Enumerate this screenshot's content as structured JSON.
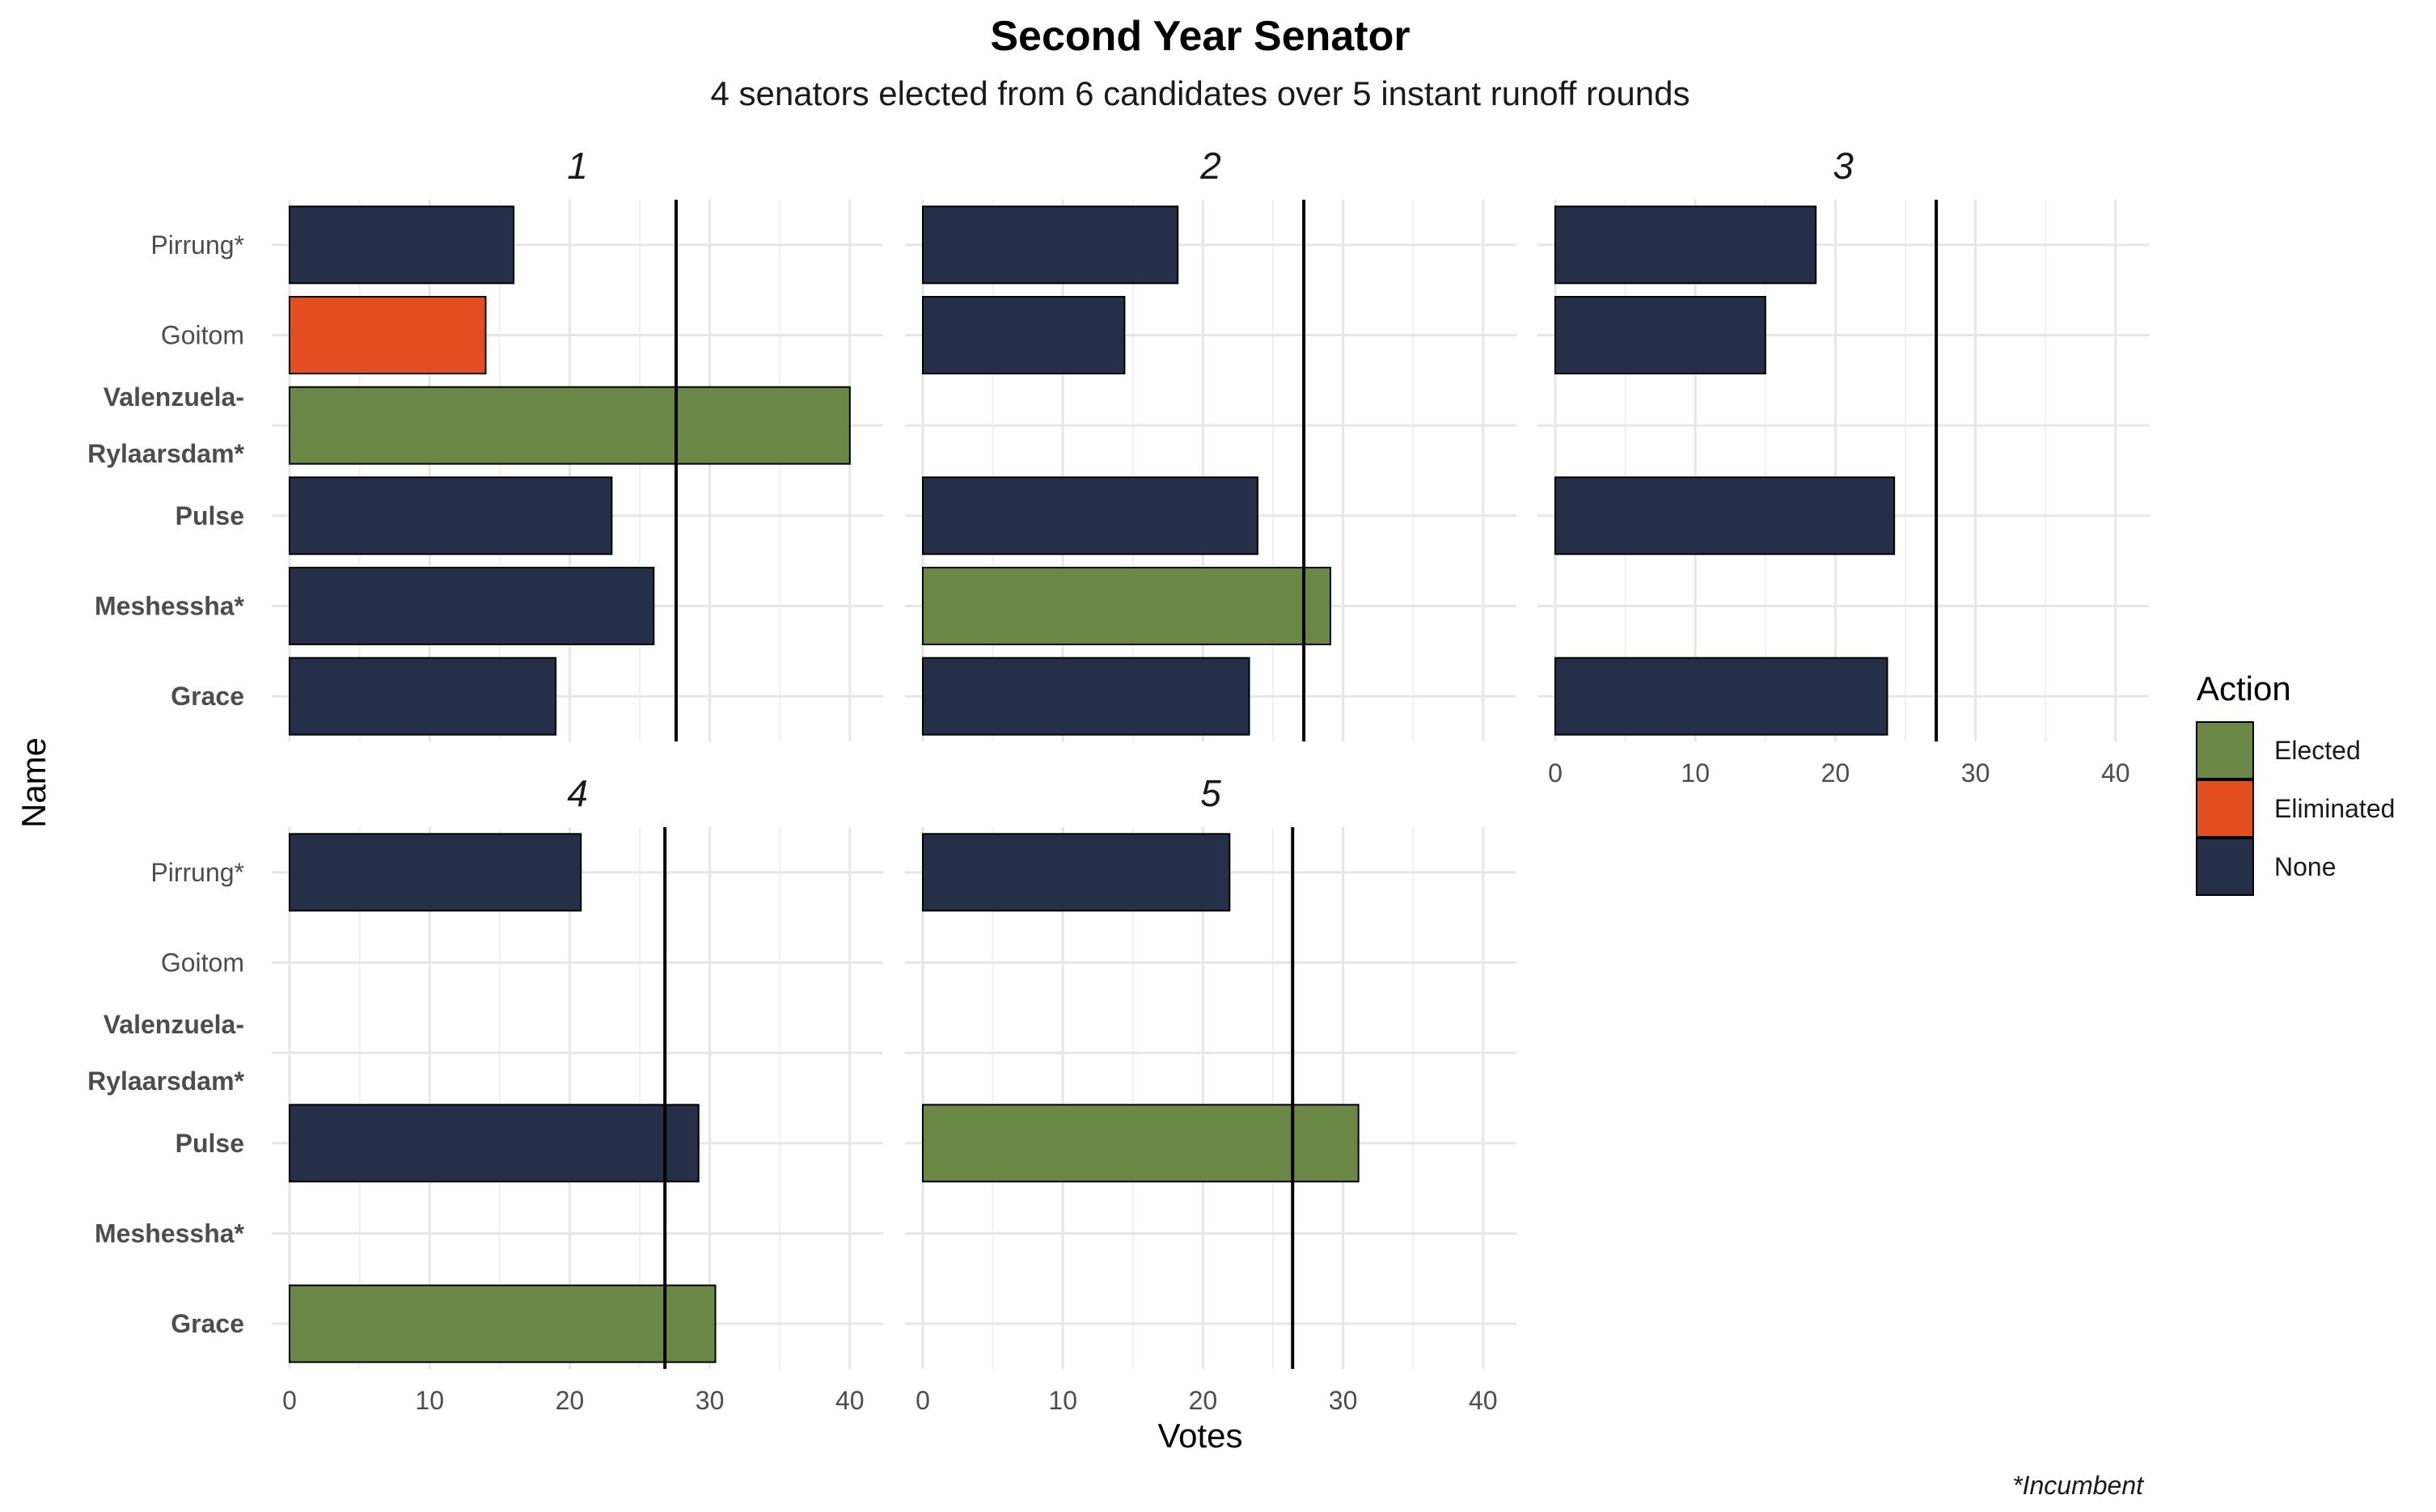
{
  "chart_data": {
    "type": "bar",
    "orientation": "horizontal",
    "title": "Second Year Senator",
    "subtitle": "4 senators elected from 6 candidates over 5 instant runoff rounds",
    "xlabel": "Votes",
    "ylabel": "Name",
    "caption": "*Incumbent",
    "xlim": [
      0,
      42
    ],
    "x_ticks": [
      "0",
      "10",
      "20",
      "30",
      "40"
    ],
    "grid": true,
    "legend_position": "right",
    "legend_title": "Action",
    "legend": [
      {
        "label": "Elected",
        "color": "#6b8745"
      },
      {
        "label": "Eliminated",
        "color": "#e24e20"
      },
      {
        "label": "None",
        "color": "#262f48"
      }
    ],
    "candidates": [
      {
        "label": "Pirrung*",
        "lines": [
          "Pirrung*"
        ],
        "bold": false
      },
      {
        "label": "Goitom",
        "lines": [
          "Goitom"
        ],
        "bold": false
      },
      {
        "label": "Valenzuela-Rylaarsdam*",
        "lines": [
          "Valenzuela-",
          "Rylaarsdam*"
        ],
        "bold": true
      },
      {
        "label": "Pulse",
        "lines": [
          "Pulse"
        ],
        "bold": true
      },
      {
        "label": "Meshessha*",
        "lines": [
          "Meshessha*"
        ],
        "bold": true
      },
      {
        "label": "Grace",
        "lines": [
          "Grace"
        ],
        "bold": true
      }
    ],
    "rounds": [
      {
        "round": "1",
        "threshold": 27.6,
        "bars": [
          {
            "candidate": "Pirrung*",
            "votes": 16,
            "action": "None"
          },
          {
            "candidate": "Goitom",
            "votes": 14,
            "action": "Eliminated"
          },
          {
            "candidate": "Valenzuela-Rylaarsdam*",
            "votes": 40,
            "action": "Elected"
          },
          {
            "candidate": "Pulse",
            "votes": 23,
            "action": "None"
          },
          {
            "candidate": "Meshessha*",
            "votes": 26,
            "action": "None"
          },
          {
            "candidate": "Grace",
            "votes": 19,
            "action": "None"
          }
        ]
      },
      {
        "round": "2",
        "threshold": 27.2,
        "bars": [
          {
            "candidate": "Pirrung*",
            "votes": 18.2,
            "action": "None"
          },
          {
            "candidate": "Goitom",
            "votes": 14.4,
            "action": "None"
          },
          {
            "candidate": "Valenzuela-Rylaarsdam*",
            "votes": 0,
            "action": "None"
          },
          {
            "candidate": "Pulse",
            "votes": 23.9,
            "action": "None"
          },
          {
            "candidate": "Meshessha*",
            "votes": 29.1,
            "action": "Elected"
          },
          {
            "candidate": "Grace",
            "votes": 23.3,
            "action": "None"
          }
        ]
      },
      {
        "round": "3",
        "threshold": 27.2,
        "bars": [
          {
            "candidate": "Pirrung*",
            "votes": 18.6,
            "action": "None"
          },
          {
            "candidate": "Goitom",
            "votes": 15,
            "action": "None"
          },
          {
            "candidate": "Valenzuela-Rylaarsdam*",
            "votes": 0,
            "action": "None"
          },
          {
            "candidate": "Pulse",
            "votes": 24.2,
            "action": "None"
          },
          {
            "candidate": "Meshessha*",
            "votes": 0,
            "action": "None"
          },
          {
            "candidate": "Grace",
            "votes": 23.7,
            "action": "None"
          }
        ]
      },
      {
        "round": "4",
        "threshold": 26.8,
        "bars": [
          {
            "candidate": "Pirrung*",
            "votes": 20.8,
            "action": "None"
          },
          {
            "candidate": "Goitom",
            "votes": 0,
            "action": "None"
          },
          {
            "candidate": "Valenzuela-Rylaarsdam*",
            "votes": 0,
            "action": "None"
          },
          {
            "candidate": "Pulse",
            "votes": 29.2,
            "action": "None"
          },
          {
            "candidate": "Meshessha*",
            "votes": 0,
            "action": "None"
          },
          {
            "candidate": "Grace",
            "votes": 30.4,
            "action": "Elected"
          }
        ]
      },
      {
        "round": "5",
        "threshold": 26.4,
        "bars": [
          {
            "candidate": "Pirrung*",
            "votes": 21.9,
            "action": "None"
          },
          {
            "candidate": "Goitom",
            "votes": 0,
            "action": "None"
          },
          {
            "candidate": "Valenzuela-Rylaarsdam*",
            "votes": 0,
            "action": "None"
          },
          {
            "candidate": "Pulse",
            "votes": 31.1,
            "action": "Elected"
          },
          {
            "candidate": "Meshessha*",
            "votes": 0,
            "action": "None"
          },
          {
            "candidate": "Grace",
            "votes": 0,
            "action": "None"
          }
        ]
      }
    ]
  }
}
